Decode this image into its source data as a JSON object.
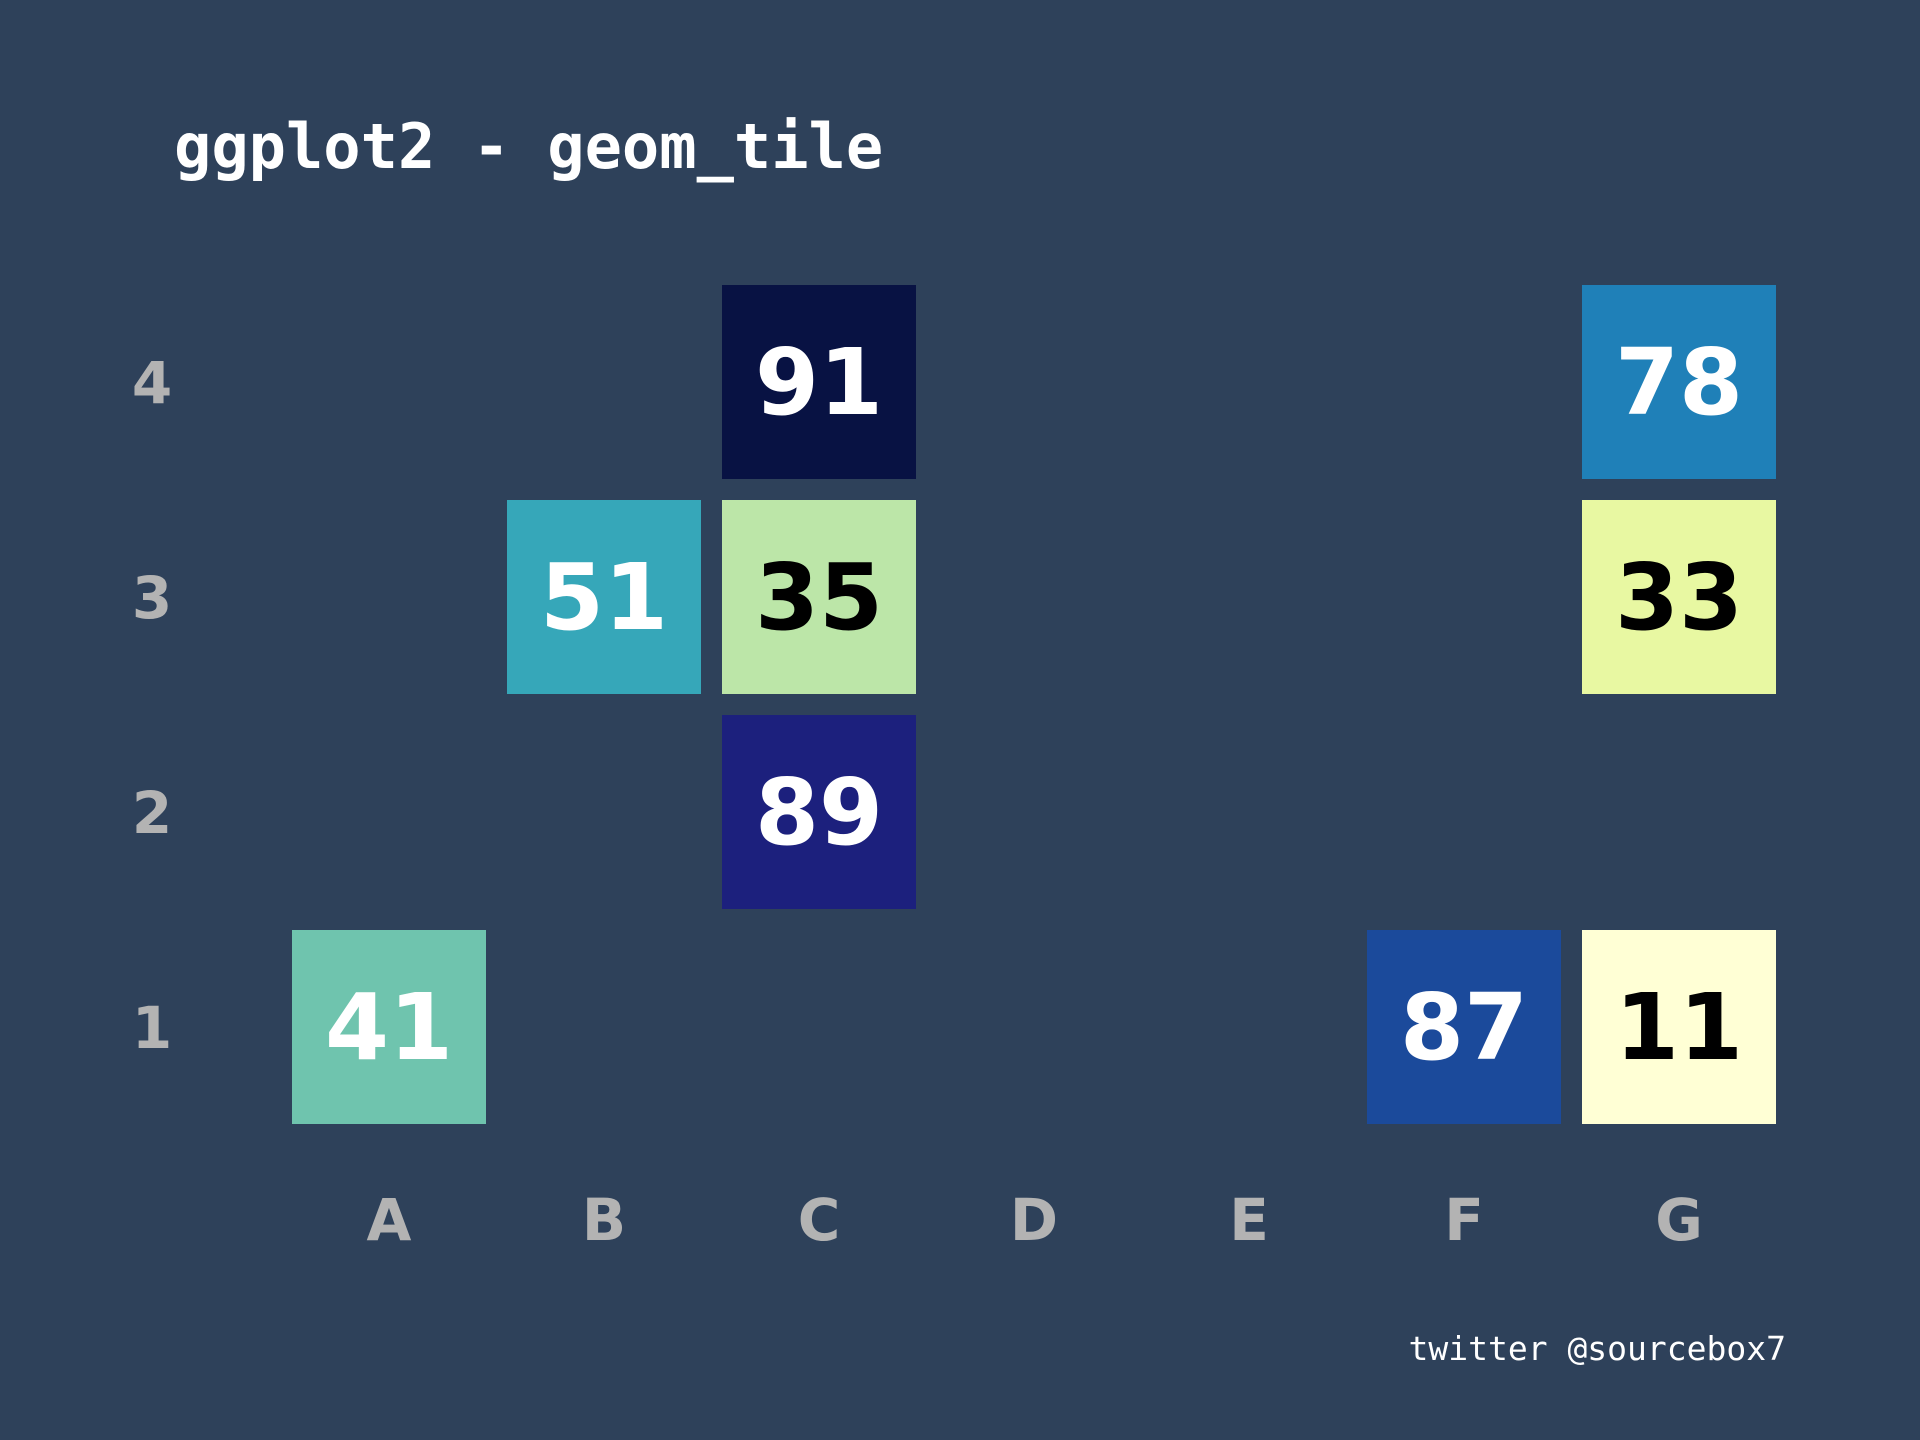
{
  "chart_data": {
    "type": "heatmap",
    "title": "ggplot2 - geom_tile",
    "caption": "twitter @sourcebox7",
    "xlabel": "",
    "ylabel": "",
    "x_categories": [
      "A",
      "B",
      "C",
      "D",
      "E",
      "F",
      "G"
    ],
    "y_categories": [
      "1",
      "2",
      "3",
      "4"
    ],
    "cells": [
      {
        "x": "A",
        "y": "1",
        "value": 41,
        "fill": "#6fc4ae",
        "text_color": "#ffffff"
      },
      {
        "x": "B",
        "y": "3",
        "value": 51,
        "fill": "#36a7b9",
        "text_color": "#ffffff"
      },
      {
        "x": "C",
        "y": "4",
        "value": 91,
        "fill": "#081243",
        "text_color": "#ffffff"
      },
      {
        "x": "C",
        "y": "3",
        "value": 35,
        "fill": "#bce6a8",
        "text_color": "#000000"
      },
      {
        "x": "C",
        "y": "2",
        "value": 89,
        "fill": "#1c207d",
        "text_color": "#ffffff"
      },
      {
        "x": "F",
        "y": "1",
        "value": 87,
        "fill": "#1b4a9b",
        "text_color": "#ffffff"
      },
      {
        "x": "G",
        "y": "4",
        "value": 78,
        "fill": "#1f80b8",
        "text_color": "#ffffff"
      },
      {
        "x": "G",
        "y": "3",
        "value": 33,
        "fill": "#e8f8a2",
        "text_color": "#000000"
      },
      {
        "x": "G",
        "y": "1",
        "value": 11,
        "fill": "#ffffd5",
        "text_color": "#000000"
      }
    ],
    "grid": false,
    "legend": "none"
  },
  "colors": {
    "background": "#2e415a",
    "title": "#ffffff",
    "tick_labels": "#b3b3b3",
    "caption": "#ffffff"
  }
}
